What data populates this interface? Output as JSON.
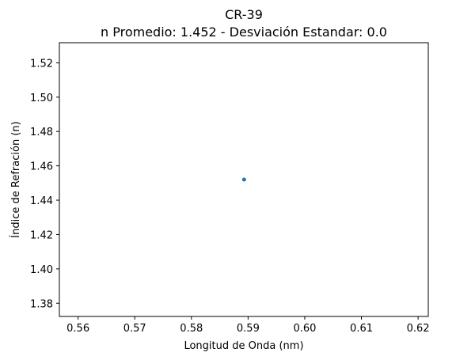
{
  "chart_data": {
    "type": "scatter",
    "title": "CR-39",
    "subtitle": "n Promedio: 1.452 - Desviación Estandar: 0.0",
    "xlabel": "Longitud de Onda (nm)",
    "ylabel": "Índice de Refración (n)",
    "xlim": [
      0.5567,
      0.6218
    ],
    "ylim": [
      1.3723,
      1.5317
    ],
    "xticks": [
      "0.56",
      "0.57",
      "0.58",
      "0.59",
      "0.60",
      "0.61",
      "0.62"
    ],
    "xtick_values": [
      0.56,
      0.57,
      0.58,
      0.59,
      0.6,
      0.61,
      0.62
    ],
    "yticks": [
      "1.38",
      "1.40",
      "1.42",
      "1.44",
      "1.46",
      "1.48",
      "1.50",
      "1.52"
    ],
    "ytick_values": [
      1.38,
      1.4,
      1.42,
      1.44,
      1.46,
      1.48,
      1.5,
      1.52
    ],
    "grid": false,
    "legend": "none",
    "marker_color": "#1f77b4",
    "points": [
      {
        "x": 0.5893,
        "y": 1.452
      }
    ]
  }
}
